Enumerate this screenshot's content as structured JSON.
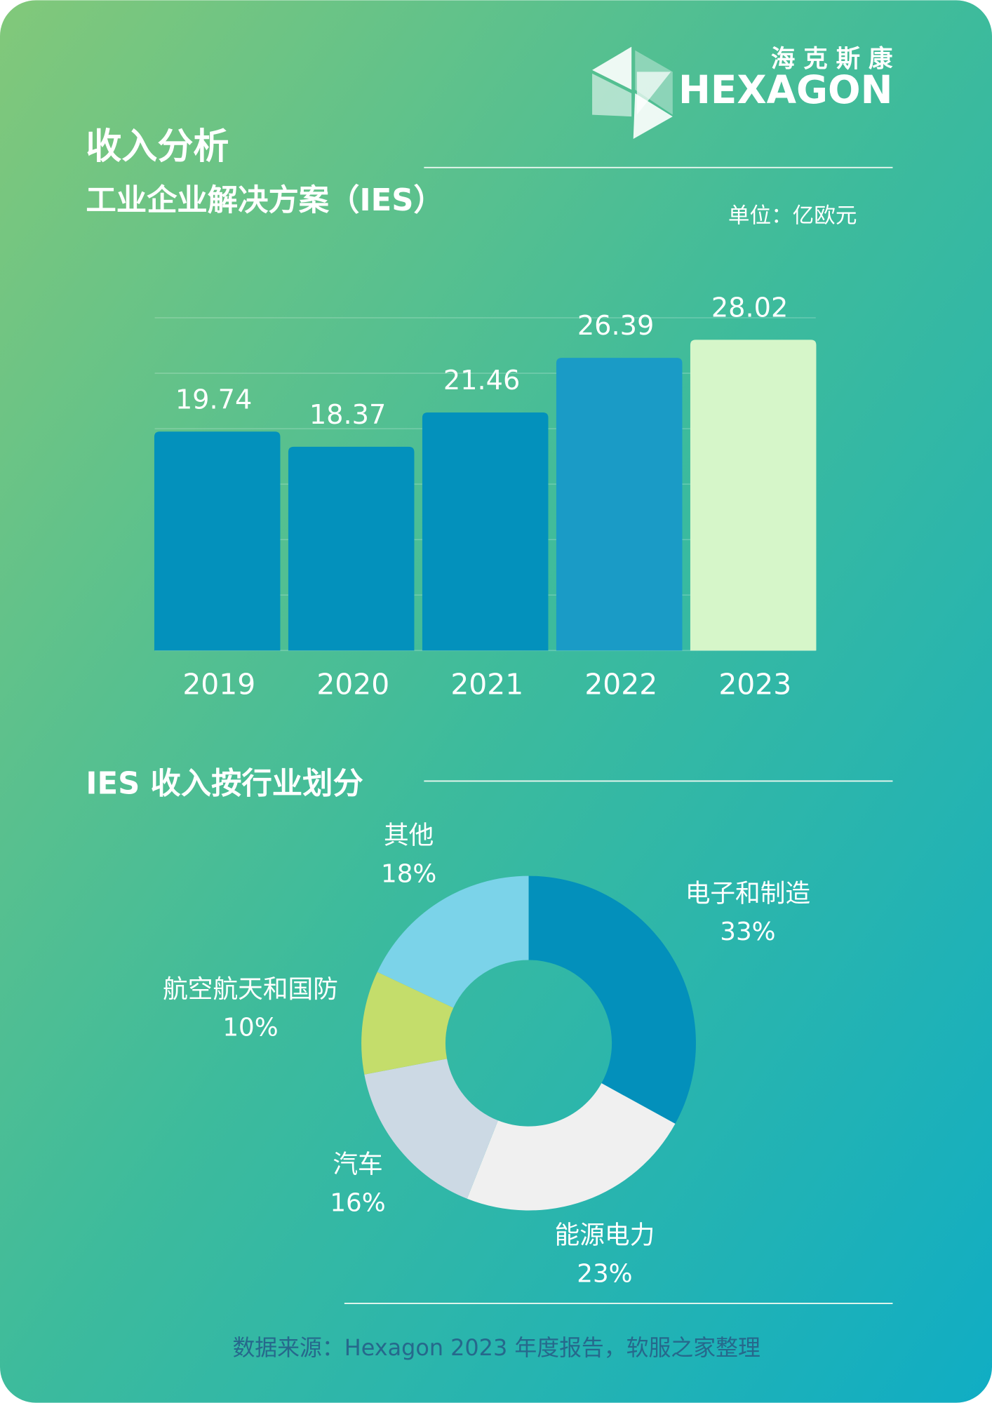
{
  "header": {
    "logo_cn": "海 克 斯 康",
    "logo_en": "HEXAGON",
    "title": "收入分析",
    "subtitle": "工业企业解决方案（IES）",
    "unit": "单位：亿欧元"
  },
  "chart_data": [
    {
      "type": "bar",
      "categories": [
        "2019",
        "2020",
        "2021",
        "2022",
        "2023"
      ],
      "values": [
        19.74,
        18.37,
        21.46,
        26.39,
        28.02
      ],
      "colors": [
        "#0391bc",
        "#0391bc",
        "#0391bc",
        "#1a9bc6",
        "#d6f6c9"
      ],
      "ylim": [
        0,
        30
      ],
      "yticks": [
        0,
        5,
        10,
        15,
        20,
        25,
        30
      ],
      "grid": true
    },
    {
      "type": "pie",
      "title": "IES 收入按行业划分",
      "categories": [
        "电子和制造",
        "能源电力",
        "汽车",
        "航空航天和国防",
        "其他"
      ],
      "values": [
        33,
        23,
        16,
        10,
        18
      ],
      "value_labels": [
        "33%",
        "23%",
        "16%",
        "10%",
        "18%"
      ],
      "colors": [
        "#0390bb",
        "#f0f0f0",
        "#ccd9e4",
        "#c4dd6b",
        "#7bd3e9"
      ]
    }
  ],
  "footer": {
    "source": "数据来源：Hexagon 2023 年度报告，软服之家整理"
  }
}
